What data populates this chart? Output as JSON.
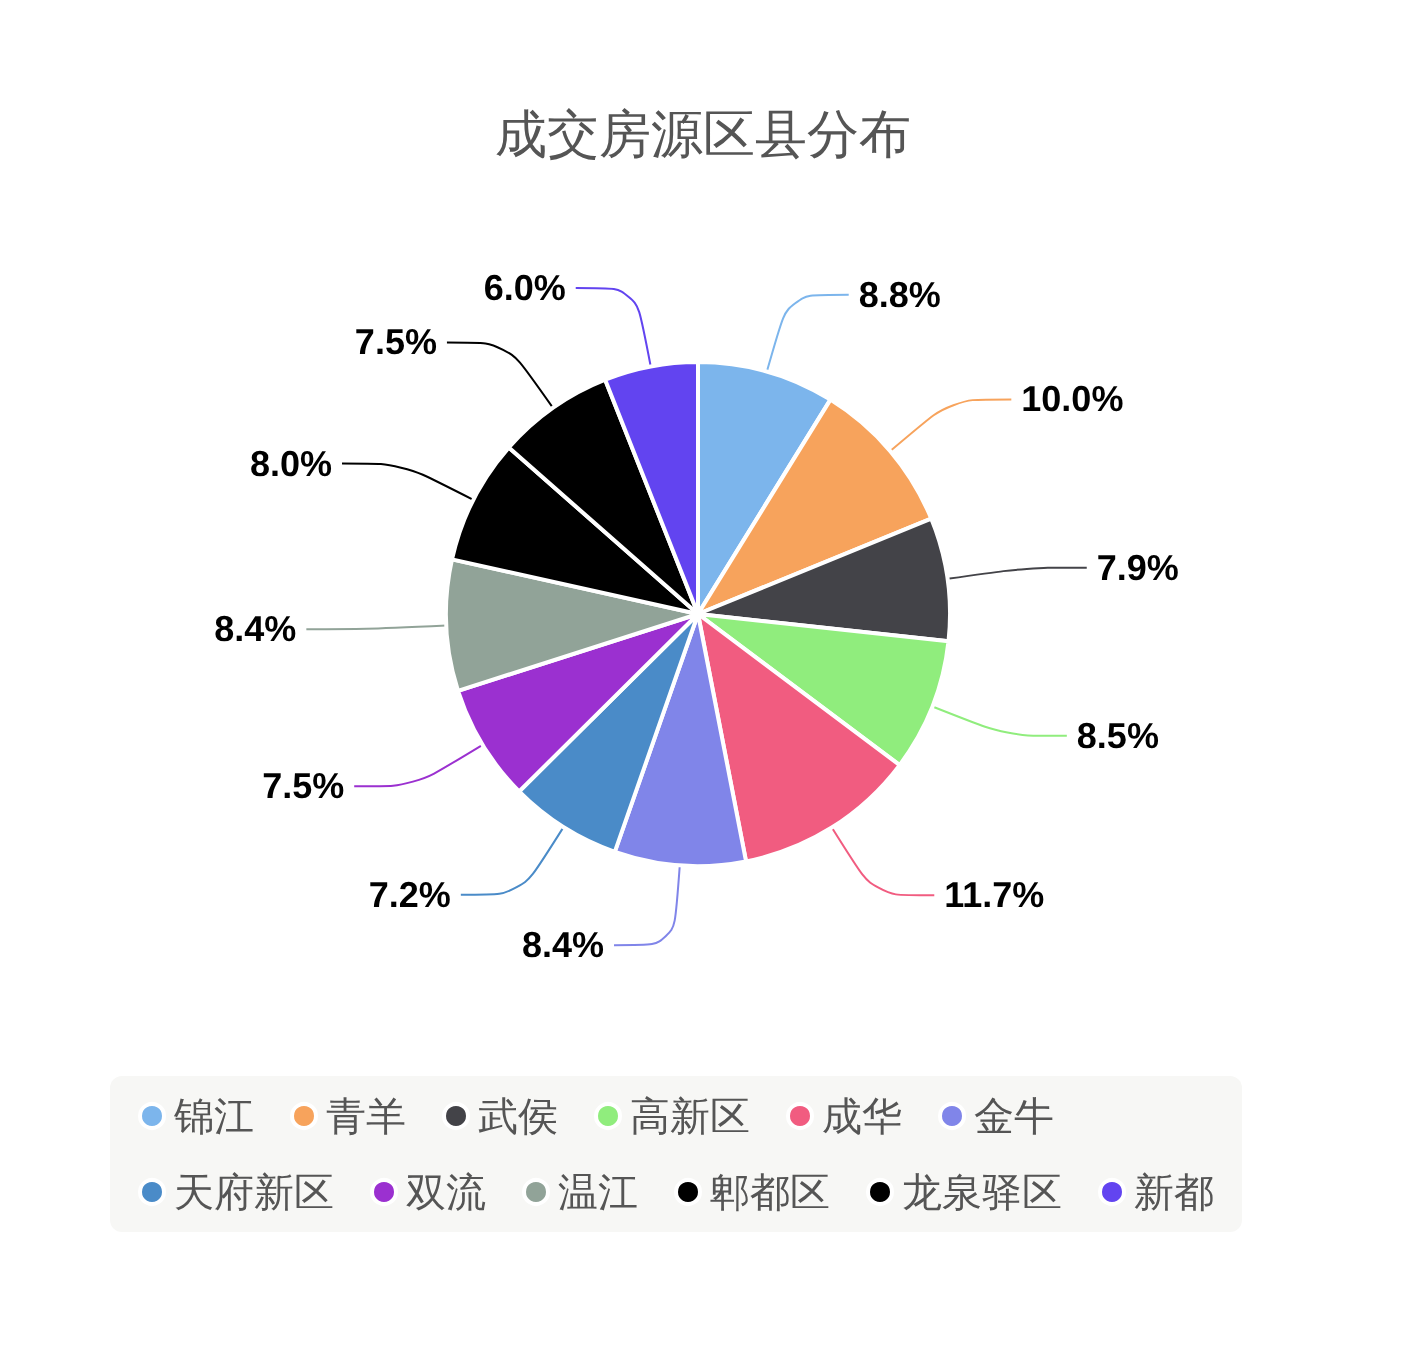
{
  "chart_data": {
    "type": "pie",
    "title": "成交房源区县分布",
    "categories": [
      "锦江",
      "青羊",
      "武侯",
      "高新区",
      "成华",
      "金牛",
      "天府新区",
      "双流",
      "温江",
      "郫都区",
      "龙泉驿区",
      "新都"
    ],
    "values": [
      8.8,
      10.0,
      7.9,
      8.5,
      11.7,
      8.4,
      7.2,
      7.5,
      8.4,
      8.0,
      7.5,
      6.0
    ],
    "value_labels": [
      "8.8%",
      "10.0%",
      "7.9%",
      "8.5%",
      "11.7%",
      "8.4%",
      "7.2%",
      "7.5%",
      "8.4%",
      "8.0%",
      "7.5%",
      "6.0%"
    ],
    "colors": [
      "#7cb5ec",
      "#f7a35c",
      "#434348",
      "#90ed7d",
      "#f15c80",
      "#8085e9",
      "#4a8bc8",
      "#9b30d0",
      "#91a398",
      "#000000",
      "#000000",
      "#6244f0"
    ],
    "legend": "bottom"
  }
}
